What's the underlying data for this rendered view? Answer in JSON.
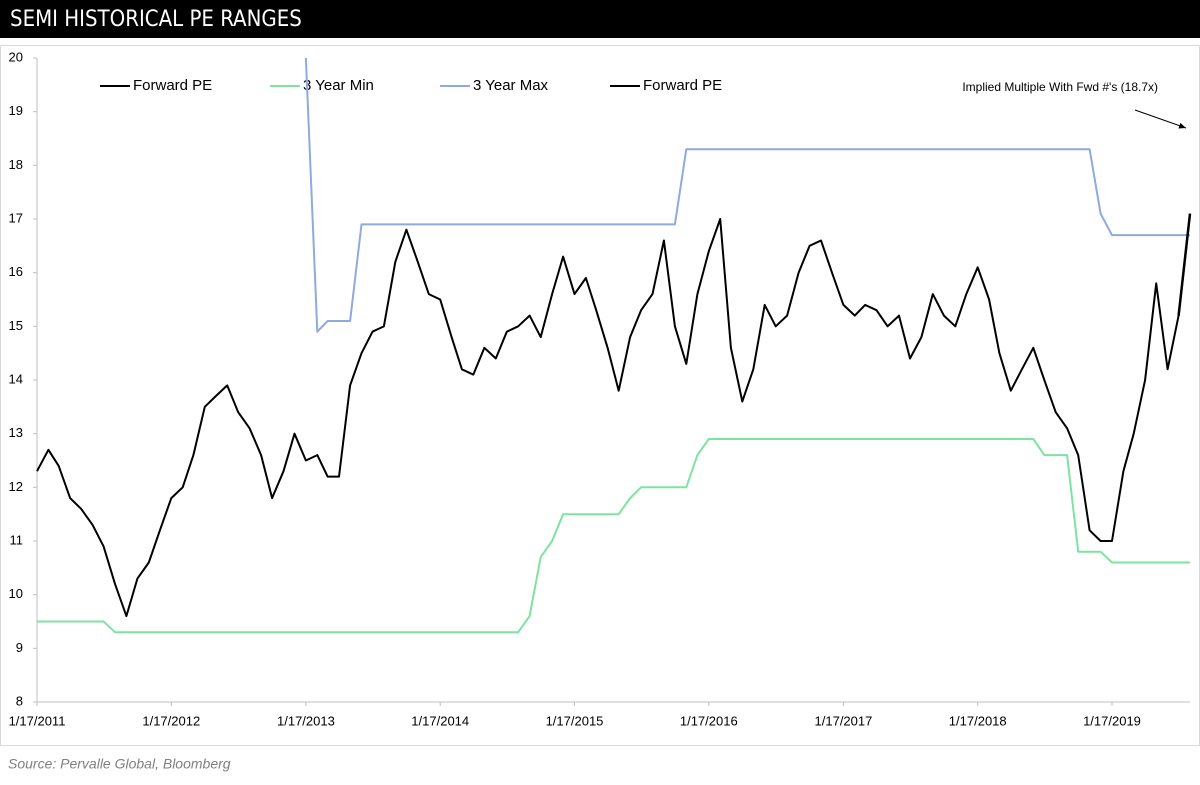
{
  "chart_data": {
    "type": "line",
    "title": "SEMI HISTORICAL PE RANGES",
    "source": "Source: Pervalle Global, Bloomberg",
    "annotation": "Implied Multiple With Fwd #'s (18.7x)",
    "x": [
      "2011-01-17",
      "2011-02-17",
      "2011-03-17",
      "2011-04-17",
      "2011-05-17",
      "2011-06-17",
      "2011-07-17",
      "2011-08-17",
      "2011-09-17",
      "2011-10-17",
      "2011-11-17",
      "2011-12-17",
      "2012-01-17",
      "2012-02-17",
      "2012-03-17",
      "2012-04-17",
      "2012-05-17",
      "2012-06-17",
      "2012-07-17",
      "2012-08-17",
      "2012-09-17",
      "2012-10-17",
      "2012-11-17",
      "2012-12-17",
      "2013-01-17",
      "2013-02-17",
      "2013-03-17",
      "2013-04-17",
      "2013-05-17",
      "2013-06-17",
      "2013-07-17",
      "2013-08-17",
      "2013-09-17",
      "2013-10-17",
      "2013-11-17",
      "2013-12-17",
      "2014-01-17",
      "2014-02-17",
      "2014-03-17",
      "2014-04-17",
      "2014-05-17",
      "2014-06-17",
      "2014-07-17",
      "2014-08-17",
      "2014-09-17",
      "2014-10-17",
      "2014-11-17",
      "2014-12-17",
      "2015-01-17",
      "2015-02-17",
      "2015-03-17",
      "2015-04-17",
      "2015-05-17",
      "2015-06-17",
      "2015-07-17",
      "2015-08-17",
      "2015-09-17",
      "2015-10-17",
      "2015-11-17",
      "2015-12-17",
      "2016-01-17",
      "2016-02-17",
      "2016-03-17",
      "2016-04-17",
      "2016-05-17",
      "2016-06-17",
      "2016-07-17",
      "2016-08-17",
      "2016-09-17",
      "2016-10-17",
      "2016-11-17",
      "2016-12-17",
      "2017-01-17",
      "2017-02-17",
      "2017-03-17",
      "2017-04-17",
      "2017-05-17",
      "2017-06-17",
      "2017-07-17",
      "2017-08-17",
      "2017-09-17",
      "2017-10-17",
      "2017-11-17",
      "2017-12-17",
      "2018-01-17",
      "2018-02-17",
      "2018-03-17",
      "2018-04-17",
      "2018-05-17",
      "2018-06-17",
      "2018-07-17",
      "2018-08-17",
      "2018-09-17",
      "2018-10-17",
      "2018-11-17",
      "2018-12-17",
      "2019-01-17",
      "2019-02-17",
      "2019-03-17",
      "2019-04-17",
      "2019-05-17",
      "2019-06-17",
      "2019-07-17",
      "2019-08-17"
    ],
    "series": [
      {
        "name": "Forward PE",
        "color": "#000000",
        "width": 2,
        "values": [
          12.3,
          12.7,
          12.4,
          11.8,
          11.6,
          11.3,
          10.9,
          10.2,
          9.6,
          10.3,
          10.6,
          11.2,
          11.8,
          12.0,
          12.6,
          13.5,
          13.7,
          13.9,
          13.4,
          13.1,
          12.6,
          11.8,
          12.3,
          13.0,
          12.5,
          12.6,
          12.2,
          12.2,
          13.9,
          14.5,
          14.9,
          15.0,
          16.2,
          16.8,
          16.2,
          15.6,
          15.5,
          14.8,
          14.2,
          14.1,
          14.6,
          14.4,
          14.9,
          15.0,
          15.2,
          14.8,
          15.6,
          16.3,
          15.6,
          15.9,
          15.3,
          14.6,
          13.8,
          14.8,
          15.3,
          15.6,
          16.6,
          15.0,
          14.3,
          15.6,
          16.4,
          17.0,
          14.6,
          13.6,
          14.2,
          15.4,
          15.0,
          15.2,
          16.0,
          16.5,
          16.6,
          16.0,
          15.4,
          15.2,
          15.4,
          15.3,
          15.0,
          15.2,
          14.4,
          14.8,
          15.6,
          15.2,
          15.0,
          15.6,
          16.1,
          15.5,
          14.5,
          13.8,
          14.2,
          14.6,
          14.0,
          13.4,
          13.1,
          12.6,
          11.2,
          11.0,
          11.0,
          12.3,
          13.0,
          14.0,
          15.8,
          14.2,
          15.2,
          17.1
        ]
      },
      {
        "name": "3 Year Min",
        "color": "#7fe3a0",
        "width": 2,
        "values": [
          9.5,
          9.5,
          9.5,
          9.5,
          9.5,
          9.5,
          9.5,
          9.3,
          9.3,
          9.3,
          9.3,
          9.3,
          9.3,
          9.3,
          9.3,
          9.3,
          9.3,
          9.3,
          9.3,
          9.3,
          9.3,
          9.3,
          9.3,
          9.3,
          9.3,
          9.3,
          9.3,
          9.3,
          9.3,
          9.3,
          9.3,
          9.3,
          9.3,
          9.3,
          9.3,
          9.3,
          9.3,
          9.3,
          9.3,
          9.3,
          9.3,
          9.3,
          9.3,
          9.3,
          9.6,
          10.7,
          11.0,
          11.5,
          11.5,
          11.5,
          11.5,
          11.5,
          11.5,
          11.8,
          12.0,
          12.0,
          12.0,
          12.0,
          12.0,
          12.6,
          12.9,
          12.9,
          12.9,
          12.9,
          12.9,
          12.9,
          12.9,
          12.9,
          12.9,
          12.9,
          12.9,
          12.9,
          12.9,
          12.9,
          12.9,
          12.9,
          12.9,
          12.9,
          12.9,
          12.9,
          12.9,
          12.9,
          12.9,
          12.9,
          12.9,
          12.9,
          12.9,
          12.9,
          12.9,
          12.9,
          12.6,
          12.6,
          12.6,
          10.8,
          10.8,
          10.8,
          10.6,
          10.6,
          10.6,
          10.6,
          10.6,
          10.6,
          10.6,
          10.6
        ]
      },
      {
        "name": "3 Year Max",
        "color": "#8faadc",
        "width": 2,
        "values": [
          null,
          null,
          null,
          null,
          null,
          null,
          null,
          null,
          null,
          null,
          null,
          null,
          null,
          null,
          null,
          null,
          null,
          null,
          null,
          null,
          null,
          null,
          null,
          null,
          20,
          14.9,
          15.1,
          15.1,
          15.1,
          16.9,
          16.9,
          16.9,
          16.9,
          16.9,
          16.9,
          16.9,
          16.9,
          16.9,
          16.9,
          16.9,
          16.9,
          16.9,
          16.9,
          16.9,
          16.9,
          16.9,
          16.9,
          16.9,
          16.9,
          16.9,
          16.9,
          16.9,
          16.9,
          16.9,
          16.9,
          16.9,
          16.9,
          16.9,
          18.3,
          18.3,
          18.3,
          18.3,
          18.3,
          18.3,
          18.3,
          18.3,
          18.3,
          18.3,
          18.3,
          18.3,
          18.3,
          18.3,
          18.3,
          18.3,
          18.3,
          18.3,
          18.3,
          18.3,
          18.3,
          18.3,
          18.3,
          18.3,
          18.3,
          18.3,
          18.3,
          18.3,
          18.3,
          18.3,
          18.3,
          18.3,
          18.3,
          18.3,
          18.3,
          18.3,
          18.3,
          17.1,
          16.7,
          16.7,
          16.7,
          16.7,
          16.7,
          16.7,
          16.7,
          16.7
        ]
      },
      {
        "name": "Forward PE",
        "color": "#000000",
        "width": 2.5,
        "values": [
          null,
          null,
          null,
          null,
          null,
          null,
          null,
          null,
          null,
          null,
          null,
          null,
          null,
          null,
          null,
          null,
          null,
          null,
          null,
          null,
          null,
          null,
          null,
          null,
          null,
          null,
          null,
          null,
          null,
          null,
          null,
          null,
          null,
          null,
          null,
          null,
          null,
          null,
          null,
          null,
          null,
          null,
          null,
          null,
          null,
          null,
          null,
          null,
          null,
          null,
          null,
          null,
          null,
          null,
          null,
          null,
          null,
          null,
          null,
          null,
          null,
          null,
          null,
          null,
          null,
          null,
          null,
          null,
          null,
          null,
          null,
          null,
          null,
          null,
          null,
          null,
          null,
          null,
          null,
          null,
          null,
          null,
          null,
          null,
          null,
          null,
          null,
          null,
          null,
          null,
          null,
          null,
          null,
          null,
          null,
          null,
          null,
          null,
          null,
          null,
          null,
          null,
          15.2,
          17.1
        ]
      }
    ],
    "xlim": [
      "2011-01-17",
      "2019-08-17"
    ],
    "xticks": [
      {
        "value": "2011-01-17",
        "label": "1/17/2011"
      },
      {
        "value": "2012-01-17",
        "label": "1/17/2012"
      },
      {
        "value": "2013-01-17",
        "label": "1/17/2013"
      },
      {
        "value": "2014-01-17",
        "label": "1/17/2014"
      },
      {
        "value": "2015-01-17",
        "label": "1/17/2015"
      },
      {
        "value": "2016-01-17",
        "label": "1/17/2016"
      },
      {
        "value": "2017-01-17",
        "label": "1/17/2017"
      },
      {
        "value": "2018-01-17",
        "label": "1/17/2018"
      },
      {
        "value": "2019-01-17",
        "label": "1/17/2019"
      }
    ],
    "ylim": [
      8,
      20
    ],
    "yticks": [
      8,
      9,
      10,
      11,
      12,
      13,
      14,
      15,
      16,
      17,
      18,
      19,
      20
    ],
    "grid": false,
    "legend": "top"
  }
}
